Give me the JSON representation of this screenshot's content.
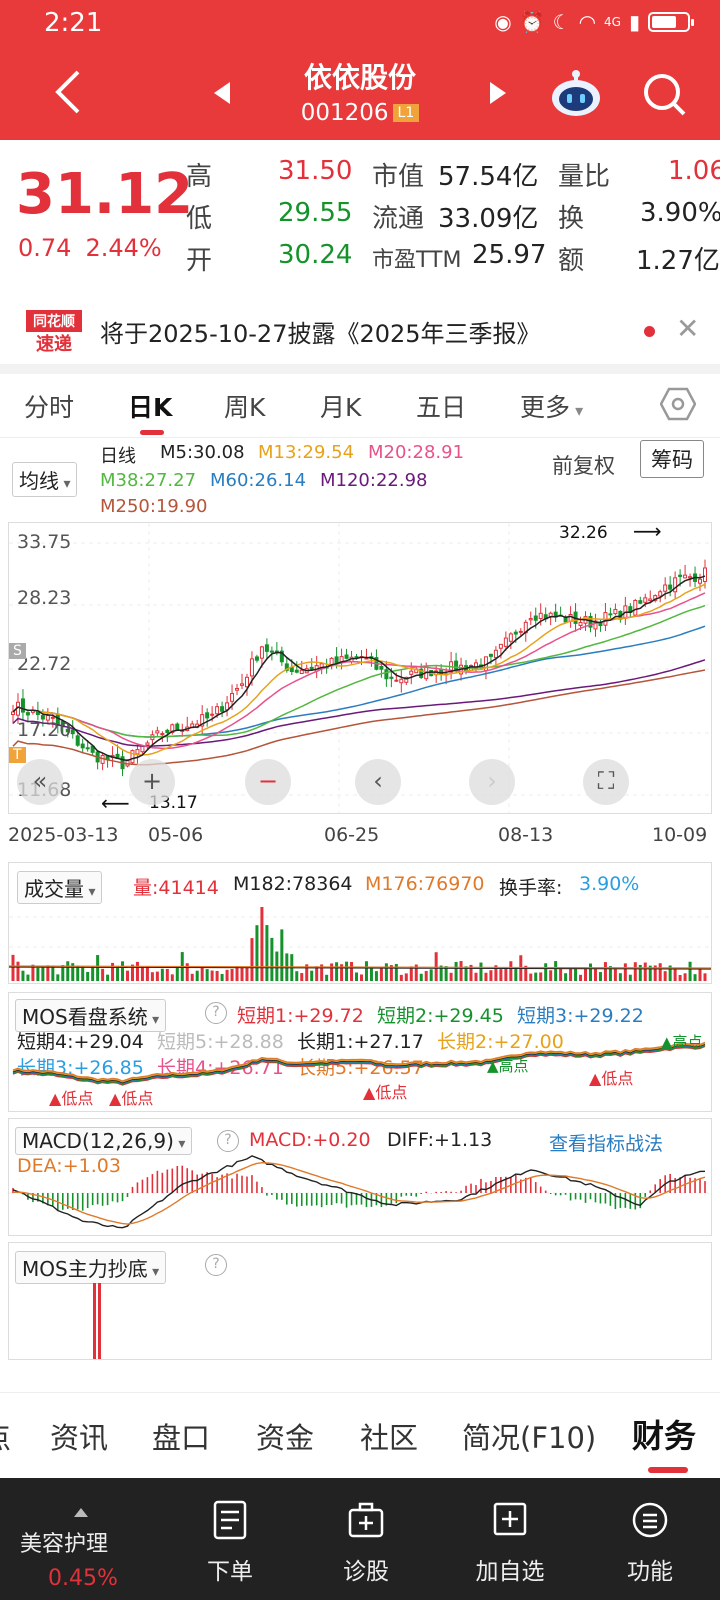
{
  "status_bar": {
    "time": "2:21",
    "network": "4G"
  },
  "header": {
    "name": "依依股份",
    "code": "001206",
    "level": "L1"
  },
  "quote": {
    "price": "31.12",
    "change": "0.74",
    "change_pct": "2.44%",
    "high_label": "高",
    "high": "31.50",
    "low_label": "低",
    "low": "29.55",
    "open_label": "开",
    "open": "30.24",
    "mcap_label": "市值",
    "mcap": "57.54亿",
    "float_label": "流通",
    "float": "33.09亿",
    "pe_label": "市盈TTM",
    "pe": "25.97",
    "vr_label": "量比",
    "vr": "1.06",
    "turn_label": "换",
    "turn": "3.90%",
    "amt_label": "额",
    "amt": "1.27亿"
  },
  "news": {
    "logo_top": "同花顺",
    "logo_bottom": "速递",
    "text": "将于2025-10-27披露《2025年三季报》"
  },
  "k_tabs": [
    "分时",
    "日K",
    "周K",
    "月K",
    "五日",
    "更多"
  ],
  "ma_header": {
    "select": "均线",
    "rix": "日线",
    "m5": "M5:30.08",
    "m13": "M13:29.54",
    "m20": "M20:28.91",
    "m38": "M38:27.27",
    "m60": "M60:26.14",
    "m120": "M120:22.98",
    "m250": "M250:19.90",
    "qfq": "前复权",
    "chip": "筹码"
  },
  "price_axis": [
    "33.75",
    "28.23",
    "22.72",
    "17.20",
    "11.68"
  ],
  "marks": {
    "high_mark": "32.26",
    "low_mark": "13.17",
    "s": "S",
    "t": "T"
  },
  "dates": [
    "2025-03-13",
    "05-06",
    "06-25",
    "08-13",
    "10-09"
  ],
  "volume_panel": {
    "select": "成交量",
    "vol": "量:41414",
    "m182": "M182:78364",
    "m176": "M176:76970",
    "turnover_label": "换手率:",
    "turnover": "3.90%"
  },
  "mos_panel": {
    "select": "MOS看盘系统",
    "help": "?",
    "s1": "短期1:+29.72",
    "s2": "短期2:+29.45",
    "s3": "短期3:+29.22",
    "s4": "短期4:+29.04",
    "s5": "短期5:+28.88",
    "l1": "长期1:+27.17",
    "l2": "长期2:+27.00",
    "l3": "长期3:+26.85",
    "l4": "长期4:+26.71",
    "l5": "长期5:+26.57",
    "low_pt": "低点",
    "high_pt": "高点"
  },
  "macd_panel": {
    "select": "MACD(12,26,9)",
    "help": "?",
    "macd": "MACD:+0.20",
    "diff": "DIFF:+1.13",
    "dea": "DEA:+1.03",
    "link": "查看指标战法"
  },
  "bottom_panel": {
    "select": "MOS主力抄底",
    "help": "?"
  },
  "bottom_tabs": [
    "点",
    "资讯",
    "盘口",
    "资金",
    "社区",
    "简况(F10)",
    "财务"
  ],
  "toolbar": {
    "sector": "美容护理",
    "sector_pct": "0.45%",
    "items": [
      "下单",
      "诊股",
      "加自选",
      "功能"
    ]
  },
  "colors": {
    "brand_red": "#e8393b",
    "up": "#e2313a",
    "down": "#15922c",
    "m5": "#222222",
    "m13": "#e8a21a",
    "m20": "#e8528a",
    "m38": "#52b83f",
    "m60": "#2a7dc0",
    "m120": "#6a1a7a",
    "m250": "#b5553a"
  }
}
